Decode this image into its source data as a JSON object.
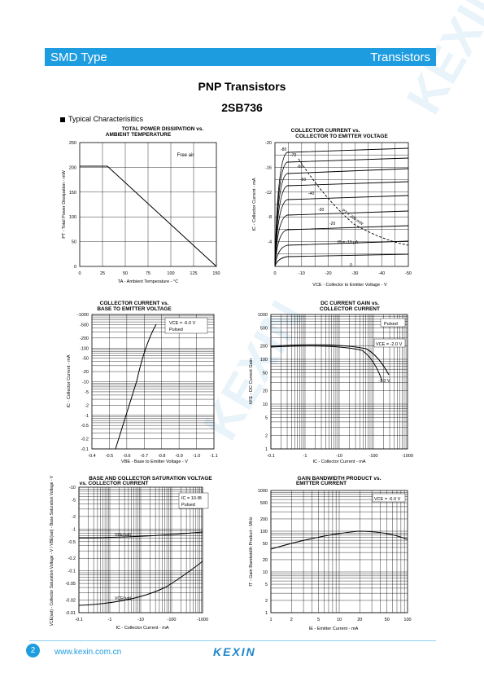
{
  "header": {
    "left": "SMD Type",
    "right": "Transistors"
  },
  "title": "PNP  Transistors",
  "part": "2SB736",
  "section": "Typical  Characterisitics",
  "footer": {
    "page": "2",
    "url": "www.kexin.com.cn",
    "logo": "KEXIN"
  },
  "colors": {
    "accent": "#1e9ce0"
  },
  "charts": [
    {
      "title": [
        "TOTAL POWER DISSIPATION vs.",
        "AMBIENT TEMPERATURE"
      ],
      "xlabel": "TA - Ambient Temperature - °C",
      "ylabel": "PT - Total Power Dissipation - mW",
      "xticks": [
        "0",
        "25",
        "50",
        "75",
        "100",
        "125",
        "150"
      ],
      "yticks": [
        "0",
        "50",
        "100",
        "150",
        "200",
        "250"
      ],
      "note": "Free air"
    },
    {
      "title": [
        "COLLECTOR CURRENT vs.",
        "COLLECTOR TO EMITTER VOLTAGE"
      ],
      "xlabel": "VCE - Collector to Emitter Voltage - V",
      "ylabel": "IC - Collector Current - mA",
      "xticks": [
        "0",
        "-10",
        "-20",
        "-30",
        "-40",
        "-50"
      ],
      "yticks": [
        "-20",
        "-16",
        "-12",
        "-8",
        "-4"
      ],
      "curve_labels": [
        "-80",
        "-70",
        "-60",
        "-50",
        "-40",
        "-30",
        "-20",
        "IB = -10 µA",
        "0",
        "PT = 200 mW"
      ]
    },
    {
      "title": [
        "COLLECTOR CURRENT vs.",
        "BASE TO EMITTER VOLTAGE"
      ],
      "xlabel": "VBE - Base to Emitter Voltage - V",
      "ylabel": "IC - Collector Current - mA",
      "xticks": [
        "-0.4",
        "-0.5",
        "-0.6",
        "-0.7",
        "-0.8",
        "-0.9",
        "-1.0",
        "-1.1"
      ],
      "yticks": [
        "-1000",
        "-500",
        "-200",
        "-100",
        "-50",
        "-20",
        "-10",
        "-5",
        "-2",
        "-1",
        "-0.5",
        "-0.2",
        "-0.1"
      ],
      "note": [
        "VCE = -6.0 V",
        "Pulsed"
      ]
    },
    {
      "title": [
        "DC CURRENT GAIN vs.",
        "COLLECTOR CURRENT"
      ],
      "xlabel": "IC - Collector Current - mA",
      "ylabel": "hFE - DC Current Gain",
      "xticks": [
        "-0.1",
        "-1",
        "-10",
        "-100",
        "-1000"
      ],
      "yticks": [
        "1000",
        "500",
        "200",
        "100",
        "50",
        "20",
        "10",
        "5",
        "2",
        "1"
      ],
      "note": [
        "Pulsed",
        "VCE = -2.0 V",
        "-1.0 V"
      ]
    },
    {
      "title": [
        "BASE AND COLLECTOR SATURATION VOLTAGE",
        "vs. COLLECTOR CURRENT"
      ],
      "xlabel": "IC - Collector Current - mA",
      "ylabel": "VCE(sat) - Collector Saturation Voltage - V / VBE(sat) - Base Saturation Voltage - V",
      "xticks": [
        "-0.1",
        "-1",
        "-10",
        "-100",
        "-1000"
      ],
      "yticks": [
        "-10",
        "-5",
        "-2",
        "-1",
        "-0.5",
        "-0.2",
        "-0.1",
        "-0.05",
        "-0.02",
        "-0.01"
      ],
      "note": [
        "IC = 10·IB",
        "Pulsed"
      ],
      "curve_labels": [
        "VBE(sat)",
        "VCE(sat)"
      ]
    },
    {
      "title": [
        "GAIN BANDWIDTH PRODUCT vs.",
        "EMITTER CURRENT"
      ],
      "xlabel": "IE - Emitter Current - mA",
      "ylabel": "fT - Gain Bandwidth Product - MHz",
      "xticks": [
        "1",
        "2",
        "5",
        "10",
        "20",
        "50",
        "100"
      ],
      "yticks": [
        "1000",
        "500",
        "200",
        "100",
        "50",
        "20",
        "10",
        "5",
        "2",
        "1"
      ],
      "note": [
        "VCE = -6.0 V"
      ]
    }
  ]
}
